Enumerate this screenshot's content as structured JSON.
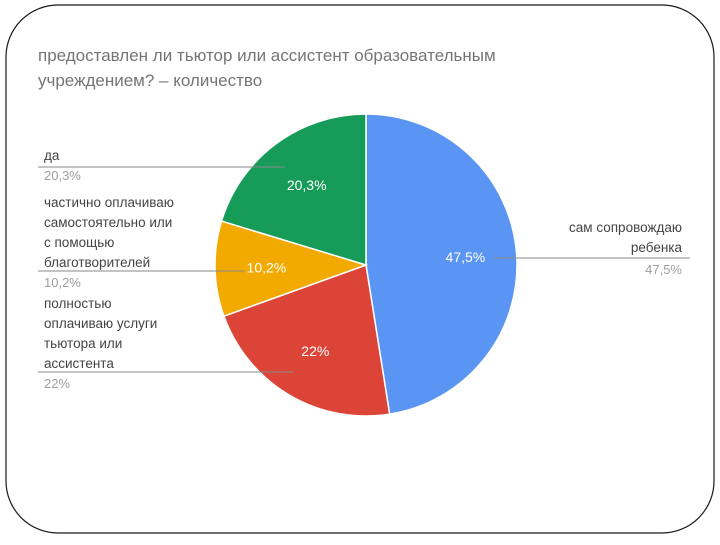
{
  "chart_data": {
    "type": "pie",
    "title_lines": [
      "предоставлен ли тьютор или ассистент образовательным",
      "учреждением? – количество"
    ],
    "slices": [
      {
        "label_lines": [
          "сам сопровождаю",
          "ребенка"
        ],
        "value": 47.5,
        "inside_label": "47,5%",
        "outside_label": "47,5%",
        "color": "#5b95f3"
      },
      {
        "label_lines": [
          "полностью",
          "оплачиваю услуги",
          "тьютора или",
          "ассистента"
        ],
        "value": 22.0,
        "inside_label": "22%",
        "outside_label": "22%",
        "color": "#db4437"
      },
      {
        "label_lines": [
          "частично оплачиваю",
          "самостоятельно или",
          "с помощью",
          "благотворителей"
        ],
        "value": 10.2,
        "inside_label": "10,2%",
        "outside_label": "10,2%",
        "color": "#f2a900"
      },
      {
        "label_lines": [
          "да"
        ],
        "value": 20.3,
        "inside_label": "20,3%",
        "outside_label": "20,3%",
        "color": "#169b58"
      }
    ]
  }
}
